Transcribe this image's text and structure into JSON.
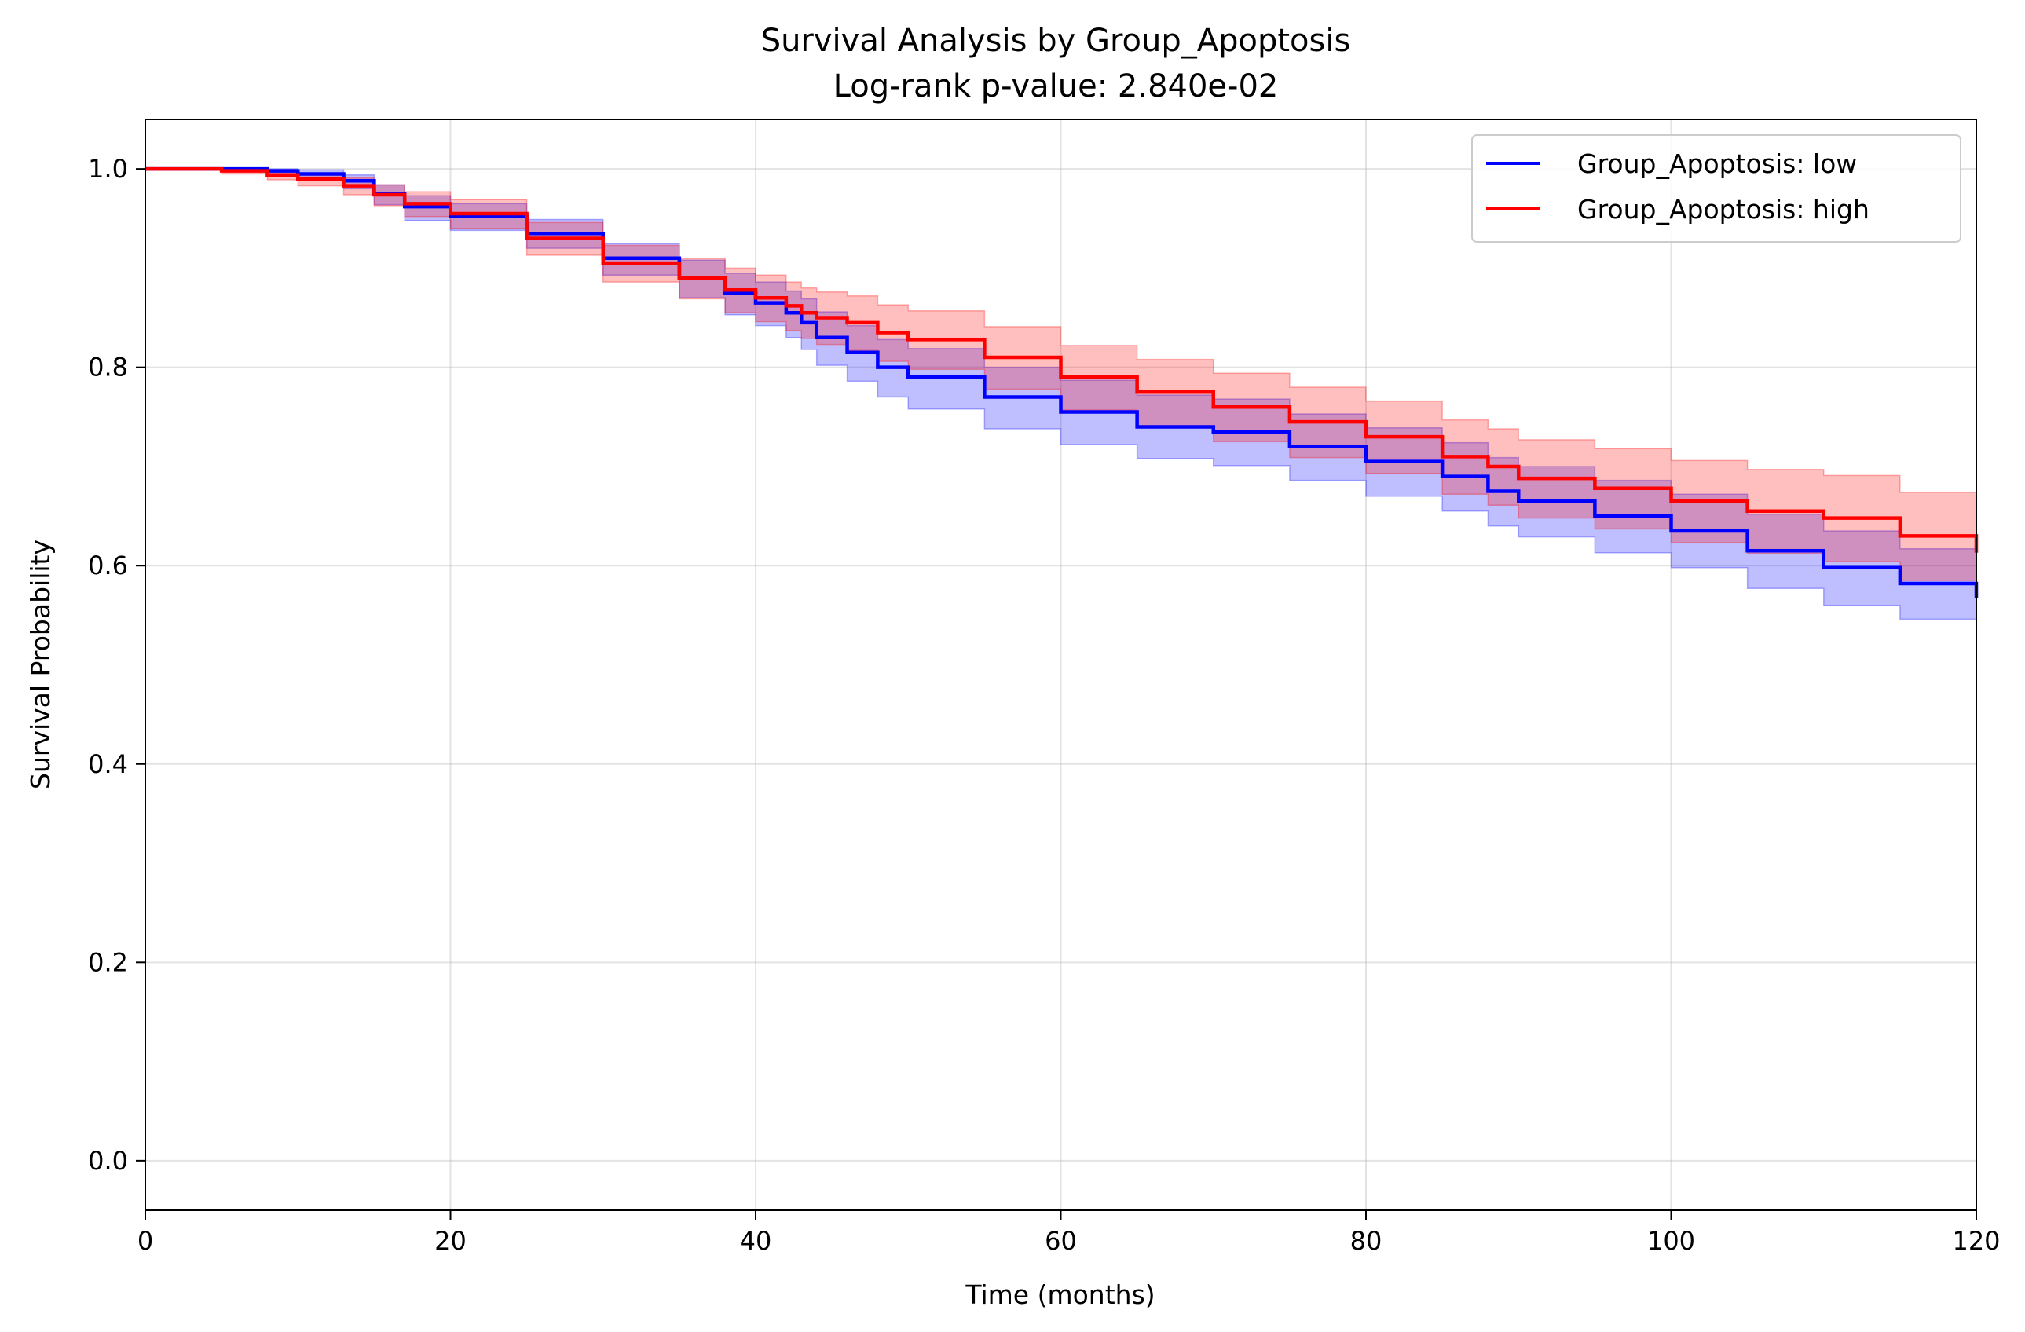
{
  "chart_data": {
    "type": "line",
    "title": "Survival Analysis by Group_Apoptosis",
    "subtitle": "Log-rank p-value: 2.840e-02",
    "xlabel": "Time (months)",
    "ylabel": "Survival Probability",
    "xlim": [
      0,
      120
    ],
    "ylim": [
      -0.05,
      1.05
    ],
    "xticks": [
      0,
      20,
      40,
      60,
      80,
      100,
      120
    ],
    "xtick_labels": [
      "0",
      "20",
      "40",
      "60",
      "80",
      "100",
      "120"
    ],
    "yticks": [
      0.0,
      0.2,
      0.4,
      0.6,
      0.8,
      1.0
    ],
    "ytick_labels": [
      "0.0",
      "0.2",
      "0.4",
      "0.6",
      "0.8",
      "1.0"
    ],
    "grid": true,
    "legend_position": "top-right",
    "step": true,
    "series": [
      {
        "name": "Group_Apoptosis: low",
        "color": "#0000ff",
        "band_color": "#0000ff",
        "x": [
          0,
          5,
          8,
          10,
          13,
          15,
          17,
          20,
          25,
          30,
          35,
          38,
          40,
          42,
          43,
          44,
          46,
          48,
          50,
          55,
          60,
          65,
          70,
          75,
          80,
          85,
          88,
          90,
          95,
          100,
          105,
          110,
          115,
          120
        ],
        "y": [
          1.0,
          1.0,
          0.998,
          0.995,
          0.988,
          0.975,
          0.962,
          0.952,
          0.935,
          0.91,
          0.89,
          0.875,
          0.865,
          0.855,
          0.845,
          0.83,
          0.815,
          0.8,
          0.79,
          0.77,
          0.755,
          0.74,
          0.735,
          0.72,
          0.705,
          0.69,
          0.675,
          0.665,
          0.65,
          0.635,
          0.615,
          0.598,
          0.582,
          0.567
        ],
        "ci_lower": [
          1.0,
          0.998,
          0.994,
          0.989,
          0.98,
          0.964,
          0.948,
          0.938,
          0.92,
          0.893,
          0.87,
          0.853,
          0.842,
          0.83,
          0.818,
          0.802,
          0.786,
          0.77,
          0.758,
          0.738,
          0.722,
          0.708,
          0.701,
          0.686,
          0.67,
          0.655,
          0.64,
          0.629,
          0.613,
          0.598,
          0.577,
          0.56,
          0.546,
          0.532
        ],
        "ci_upper": [
          1.0,
          1.0,
          1.0,
          0.999,
          0.994,
          0.984,
          0.973,
          0.965,
          0.949,
          0.925,
          0.908,
          0.895,
          0.886,
          0.877,
          0.869,
          0.856,
          0.842,
          0.828,
          0.819,
          0.8,
          0.787,
          0.772,
          0.768,
          0.753,
          0.739,
          0.724,
          0.709,
          0.7,
          0.686,
          0.672,
          0.652,
          0.635,
          0.617,
          0.601
        ]
      },
      {
        "name": "Group_Apoptosis: high",
        "color": "#ff0000",
        "band_color": "#ff0000",
        "x": [
          0,
          5,
          8,
          10,
          13,
          15,
          17,
          20,
          25,
          30,
          35,
          38,
          40,
          42,
          43,
          44,
          46,
          48,
          50,
          55,
          60,
          65,
          70,
          75,
          80,
          85,
          88,
          90,
          95,
          100,
          105,
          110,
          115,
          120
        ],
        "y": [
          1.0,
          0.998,
          0.994,
          0.99,
          0.983,
          0.974,
          0.965,
          0.955,
          0.93,
          0.905,
          0.89,
          0.878,
          0.87,
          0.862,
          0.855,
          0.85,
          0.845,
          0.835,
          0.828,
          0.81,
          0.79,
          0.775,
          0.76,
          0.745,
          0.73,
          0.71,
          0.7,
          0.688,
          0.678,
          0.665,
          0.655,
          0.648,
          0.63,
          0.613
        ],
        "ci_lower": [
          1.0,
          0.995,
          0.989,
          0.983,
          0.974,
          0.963,
          0.952,
          0.94,
          0.913,
          0.886,
          0.869,
          0.855,
          0.846,
          0.837,
          0.829,
          0.823,
          0.817,
          0.806,
          0.798,
          0.778,
          0.757,
          0.741,
          0.725,
          0.709,
          0.693,
          0.672,
          0.661,
          0.648,
          0.637,
          0.623,
          0.612,
          0.604,
          0.585,
          0.582
        ],
        "ci_upper": [
          1.0,
          1.0,
          0.999,
          0.996,
          0.991,
          0.984,
          0.977,
          0.969,
          0.946,
          0.923,
          0.91,
          0.9,
          0.893,
          0.886,
          0.88,
          0.876,
          0.872,
          0.863,
          0.857,
          0.841,
          0.822,
          0.808,
          0.794,
          0.78,
          0.766,
          0.747,
          0.738,
          0.727,
          0.718,
          0.706,
          0.697,
          0.691,
          0.674,
          0.645
        ]
      }
    ]
  }
}
